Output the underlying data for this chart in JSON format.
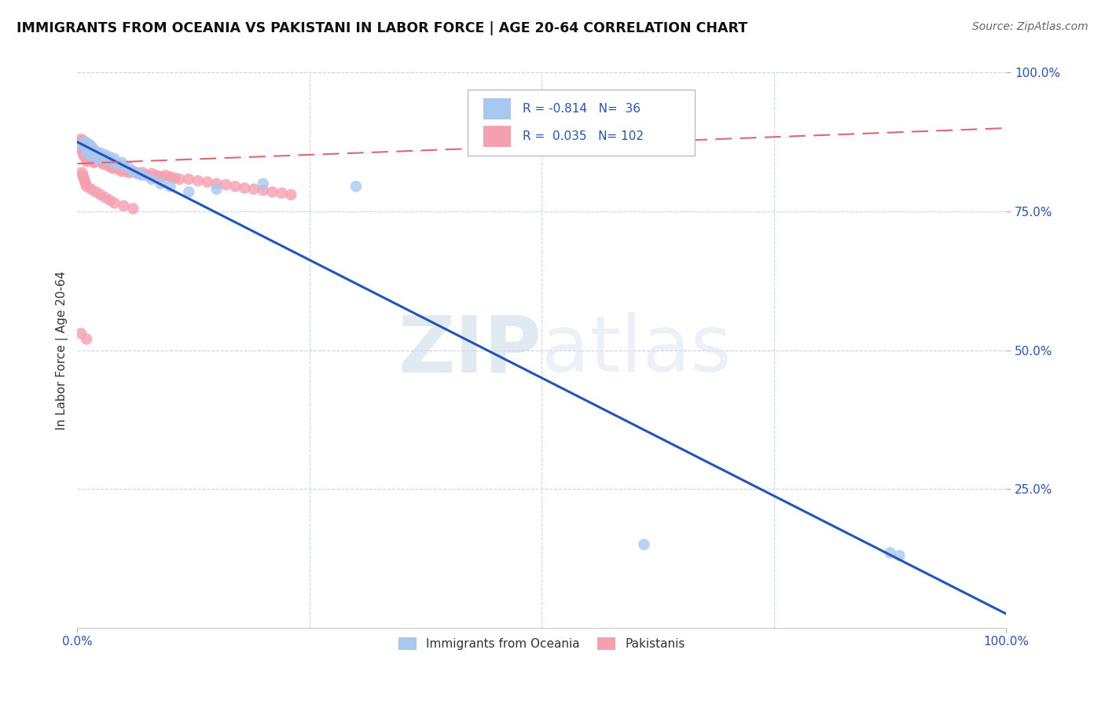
{
  "title": "IMMIGRANTS FROM OCEANIA VS PAKISTANI IN LABOR FORCE | AGE 20-64 CORRELATION CHART",
  "source": "Source: ZipAtlas.com",
  "ylabel": "In Labor Force | Age 20-64",
  "xlim": [
    0.0,
    1.0
  ],
  "ylim": [
    0.0,
    1.0
  ],
  "legend1_label": "Immigrants from Oceania",
  "legend2_label": "Pakistanis",
  "r1": -0.814,
  "n1": 36,
  "r2": 0.035,
  "n2": 102,
  "color_oceania": "#a8c8f0",
  "color_pakistani": "#f4a0b0",
  "line_color_oceania": "#2255bb",
  "line_color_pakistani": "#dd6677",
  "watermark_zip": "ZIP",
  "watermark_atlas": "atlas",
  "background_color": "#ffffff",
  "grid_color": "#c8d4e8",
  "oceania_x": [
    0.005,
    0.008,
    0.01,
    0.01,
    0.012,
    0.013,
    0.015,
    0.015,
    0.017,
    0.018,
    0.02,
    0.022,
    0.025,
    0.027,
    0.03,
    0.032,
    0.035,
    0.038,
    0.04,
    0.043,
    0.048,
    0.05,
    0.055,
    0.06,
    0.065,
    0.07,
    0.08,
    0.09,
    0.1,
    0.12,
    0.15,
    0.2,
    0.3,
    0.61,
    0.875,
    0.885
  ],
  "oceania_y": [
    0.87,
    0.875,
    0.865,
    0.855,
    0.872,
    0.86,
    0.868,
    0.85,
    0.863,
    0.855,
    0.858,
    0.845,
    0.855,
    0.848,
    0.852,
    0.842,
    0.848,
    0.84,
    0.845,
    0.835,
    0.838,
    0.833,
    0.83,
    0.822,
    0.818,
    0.815,
    0.808,
    0.8,
    0.795,
    0.785,
    0.79,
    0.8,
    0.795,
    0.15,
    0.135,
    0.13
  ],
  "pakistani_x": [
    0.003,
    0.004,
    0.004,
    0.005,
    0.005,
    0.006,
    0.006,
    0.006,
    0.007,
    0.007,
    0.007,
    0.008,
    0.008,
    0.008,
    0.009,
    0.009,
    0.009,
    0.01,
    0.01,
    0.01,
    0.01,
    0.011,
    0.011,
    0.011,
    0.012,
    0.012,
    0.012,
    0.013,
    0.013,
    0.014,
    0.014,
    0.015,
    0.015,
    0.016,
    0.016,
    0.017,
    0.017,
    0.018,
    0.018,
    0.019,
    0.02,
    0.02,
    0.021,
    0.022,
    0.023,
    0.024,
    0.025,
    0.026,
    0.027,
    0.028,
    0.03,
    0.032,
    0.034,
    0.036,
    0.038,
    0.04,
    0.042,
    0.045,
    0.048,
    0.05,
    0.053,
    0.056,
    0.06,
    0.063,
    0.067,
    0.07,
    0.075,
    0.08,
    0.085,
    0.09,
    0.095,
    0.1,
    0.105,
    0.11,
    0.12,
    0.13,
    0.14,
    0.15,
    0.16,
    0.17,
    0.18,
    0.19,
    0.2,
    0.21,
    0.22,
    0.23,
    0.005,
    0.006,
    0.007,
    0.008,
    0.009,
    0.01,
    0.015,
    0.02,
    0.025,
    0.03,
    0.035,
    0.04,
    0.05,
    0.06,
    0.004,
    0.01
  ],
  "pakistani_y": [
    0.87,
    0.88,
    0.865,
    0.875,
    0.86,
    0.878,
    0.868,
    0.855,
    0.872,
    0.862,
    0.85,
    0.875,
    0.863,
    0.852,
    0.87,
    0.86,
    0.848,
    0.872,
    0.862,
    0.852,
    0.84,
    0.868,
    0.858,
    0.848,
    0.865,
    0.855,
    0.842,
    0.862,
    0.85,
    0.86,
    0.848,
    0.858,
    0.845,
    0.855,
    0.842,
    0.852,
    0.84,
    0.85,
    0.838,
    0.848,
    0.855,
    0.843,
    0.85,
    0.845,
    0.842,
    0.84,
    0.845,
    0.842,
    0.838,
    0.835,
    0.838,
    0.835,
    0.832,
    0.83,
    0.828,
    0.83,
    0.828,
    0.825,
    0.822,
    0.825,
    0.822,
    0.82,
    0.822,
    0.82,
    0.818,
    0.82,
    0.815,
    0.818,
    0.815,
    0.812,
    0.815,
    0.812,
    0.81,
    0.808,
    0.808,
    0.805,
    0.803,
    0.8,
    0.798,
    0.795,
    0.792,
    0.79,
    0.788,
    0.785,
    0.783,
    0.78,
    0.82,
    0.815,
    0.81,
    0.805,
    0.8,
    0.795,
    0.79,
    0.785,
    0.78,
    0.775,
    0.77,
    0.765,
    0.76,
    0.755,
    0.53,
    0.52
  ],
  "blue_line_x0": 0.0,
  "blue_line_y0": 0.875,
  "blue_line_x1": 1.0,
  "blue_line_y1": 0.025,
  "pink_line_x0": 0.0,
  "pink_line_y0": 0.836,
  "pink_line_x1": 1.0,
  "pink_line_y1": 0.9
}
